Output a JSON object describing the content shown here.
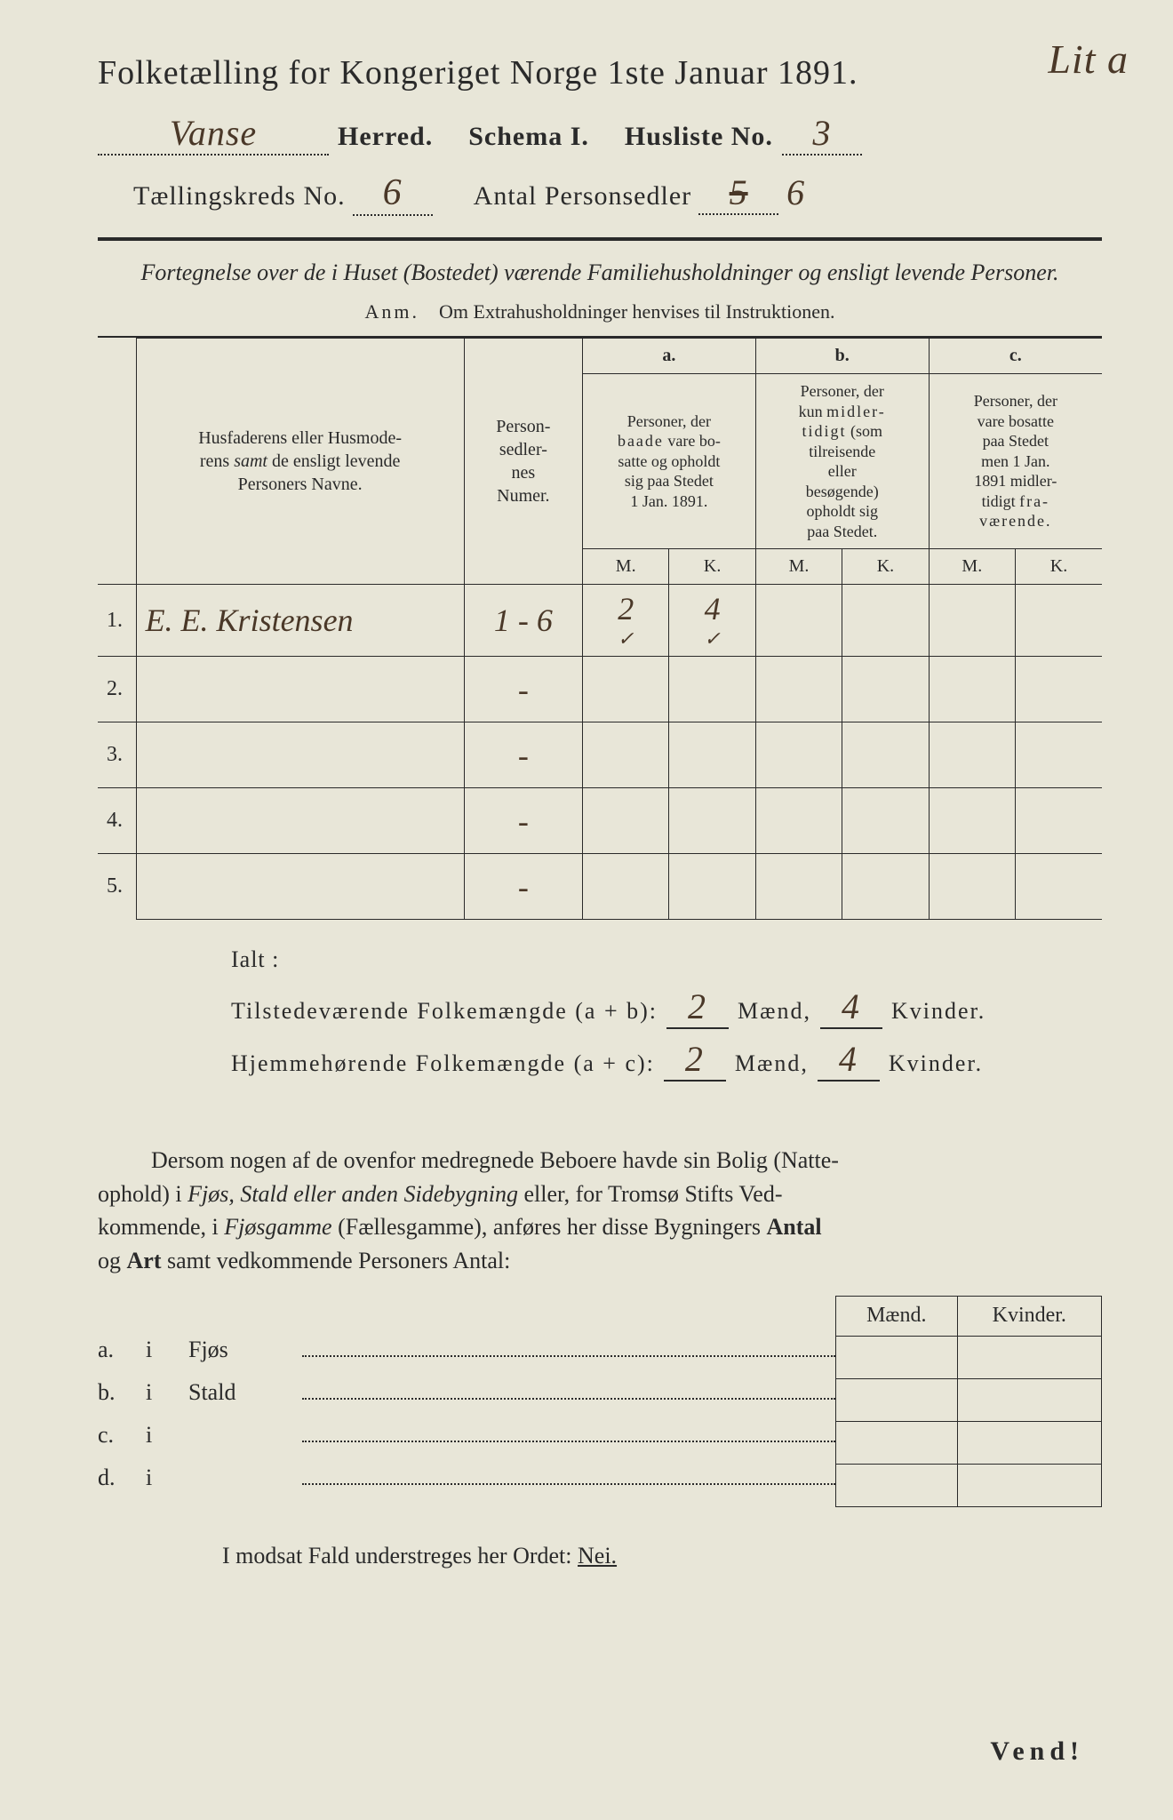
{
  "colors": {
    "paper": "#e8e6d8",
    "ink": "#2a2a2a",
    "handwriting": "#4a3828"
  },
  "annotation_top": "Lit a",
  "title": "Folketælling for Kongeriget Norge 1ste Januar 1891.",
  "line2": {
    "herred_value": "Vanse",
    "herred_label": "Herred.",
    "schema_label": "Schema I.",
    "husliste_label": "Husliste No.",
    "husliste_value": "3"
  },
  "line3": {
    "kreds_label": "Tællingskreds No.",
    "kreds_value": "6",
    "sedler_label": "Antal Personsedler",
    "sedler_crossed": "5",
    "sedler_value": "6"
  },
  "subtitle": "Fortegnelse over de i Huset (Bostedet) værende Familiehusholdninger og ensligt levende Personer.",
  "anm": {
    "prefix": "Anm.",
    "text": "Om Extrahusholdninger henvises til Instruktionen."
  },
  "table": {
    "col_name_header": "Husfaderens eller Husmoderens samt de ensligt levende Personers Navne.",
    "col_pers_header": "Person-sedler-nes Numer.",
    "group_a": "a.",
    "group_a_text": "Personer, der baade vare bosatte og opholdt sig paa Stedet 1 Jan. 1891.",
    "group_b": "b.",
    "group_b_text": "Personer, der kun midlertidigt (som tilreisende eller besøgende) opholdt sig paa Stedet.",
    "group_c": "c.",
    "group_c_text": "Personer, der vare bosatte paa Stedet men 1 Jan. 1891 midlertidigt fraværende.",
    "m": "M.",
    "k": "K.",
    "rows": [
      {
        "num": "1.",
        "name": "E. E. Kristensen",
        "pers": "1 - 6",
        "a_m": "2",
        "a_k": "4",
        "b_m": "",
        "b_k": "",
        "c_m": "",
        "c_k": ""
      },
      {
        "num": "2.",
        "name": "",
        "pers": "-",
        "a_m": "",
        "a_k": "",
        "b_m": "",
        "b_k": "",
        "c_m": "",
        "c_k": ""
      },
      {
        "num": "3.",
        "name": "",
        "pers": "-",
        "a_m": "",
        "a_k": "",
        "b_m": "",
        "b_k": "",
        "c_m": "",
        "c_k": ""
      },
      {
        "num": "4.",
        "name": "",
        "pers": "-",
        "a_m": "",
        "a_k": "",
        "b_m": "",
        "b_k": "",
        "c_m": "",
        "c_k": ""
      },
      {
        "num": "5.",
        "name": "",
        "pers": "-",
        "a_m": "",
        "a_k": "",
        "b_m": "",
        "b_k": "",
        "c_m": "",
        "c_k": ""
      }
    ]
  },
  "ialt": {
    "title": "Ialt :",
    "line_a_label": "Tilstedeværende Folkemængde (a + b):",
    "line_b_label": "Hjemmehørende Folkemængde (a + c):",
    "maend": "Mænd,",
    "kvinder": "Kvinder.",
    "a_m": "2",
    "a_k": "4",
    "b_m": "2",
    "b_k": "4"
  },
  "para": "Dersom nogen af de ovenfor medregnede Beboere havde sin Bolig (Natteophold) i Fjøs, Stald eller anden Sidebygning eller, for Tromsø Stifts Vedkommende, i Fjøsgamme (Fællesgamme), anføres her disse Bygningers Antal og Art samt vedkommende Personers Antal:",
  "buildings": {
    "headers": {
      "maend": "Mænd.",
      "kvinder": "Kvinder."
    },
    "rows": [
      {
        "lbl": "a.",
        "i": "i",
        "type": "Fjøs"
      },
      {
        "lbl": "b.",
        "i": "i",
        "type": "Stald"
      },
      {
        "lbl": "c.",
        "i": "i",
        "type": ""
      },
      {
        "lbl": "d.",
        "i": "i",
        "type": ""
      }
    ]
  },
  "modsat": {
    "text": "I modsat Fald understreges her Ordet:",
    "nei": "Nei."
  },
  "vend": "Vend!"
}
